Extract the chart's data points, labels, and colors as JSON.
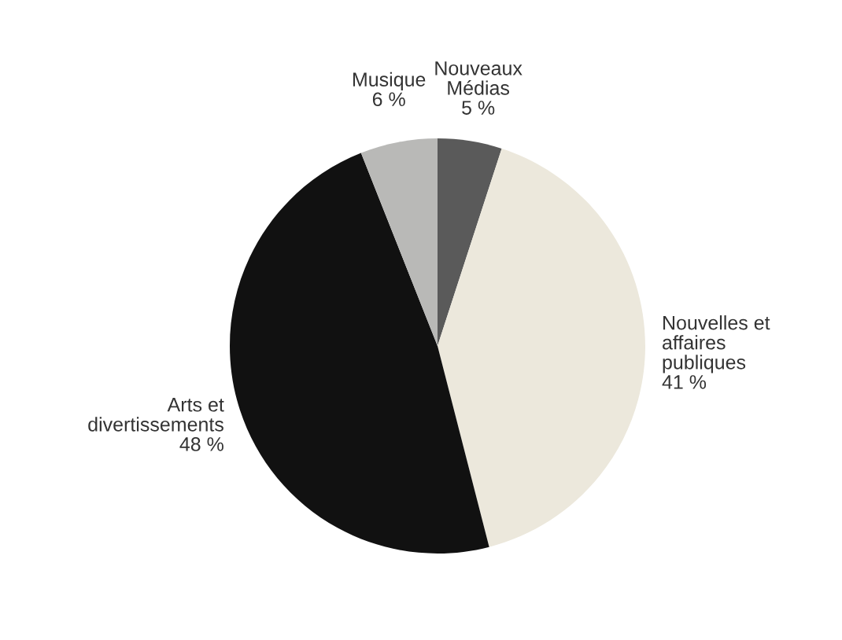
{
  "chart_data": {
    "type": "pie",
    "categories": [
      "Nouveaux\nMédias",
      "Nouvelles et\naffaires\npubliques",
      "Arts et\ndivertissements",
      "Musique"
    ],
    "values": [
      5,
      41,
      48,
      6
    ],
    "value_labels": [
      "5 %",
      "41 %",
      "48 %",
      "6 %"
    ],
    "colors": [
      "#5a5a5a",
      "#ece8dc",
      "#111111",
      "#b9b9b7"
    ],
    "legend": false
  }
}
